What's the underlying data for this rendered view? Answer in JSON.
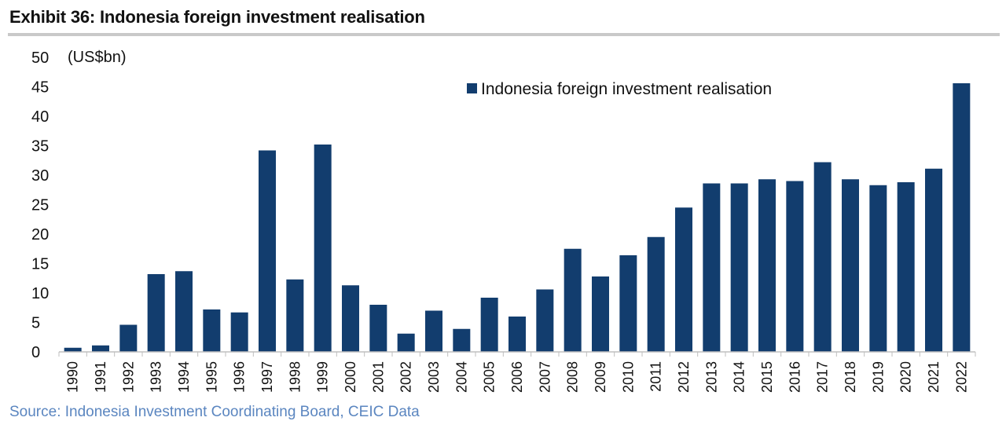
{
  "exhibit": {
    "title": "Exhibit 36: Indonesia foreign investment realisation",
    "source": "Source: Indonesia Investment Coordinating Board, CEIC Data"
  },
  "chart_data": {
    "type": "bar",
    "title": "",
    "xlabel": "",
    "ylabel": "(US$bn)",
    "ylim": [
      0,
      50
    ],
    "yticks": [
      0,
      5,
      10,
      15,
      20,
      25,
      30,
      35,
      40,
      45,
      50
    ],
    "grid": false,
    "legend_position": "top-right",
    "color": "#123d6e",
    "categories": [
      "1990",
      "1991",
      "1992",
      "1993",
      "1994",
      "1995",
      "1996",
      "1997",
      "1998",
      "1999",
      "2000",
      "2001",
      "2002",
      "2003",
      "2004",
      "2005",
      "2006",
      "2007",
      "2008",
      "2009",
      "2010",
      "2011",
      "2012",
      "2013",
      "2014",
      "2015",
      "2016",
      "2017",
      "2018",
      "2019",
      "2020",
      "2021",
      "2022"
    ],
    "series": [
      {
        "name": "Indonesia foreign investment realisation",
        "values": [
          0.7,
          1.1,
          4.6,
          13.2,
          13.7,
          7.2,
          6.7,
          34.2,
          12.3,
          35.2,
          11.3,
          8.0,
          3.1,
          7.0,
          3.9,
          9.2,
          6.0,
          10.6,
          17.5,
          12.8,
          16.4,
          19.5,
          24.5,
          28.6,
          28.6,
          29.3,
          29.0,
          32.2,
          29.3,
          28.3,
          28.8,
          31.1,
          45.6
        ]
      }
    ]
  }
}
